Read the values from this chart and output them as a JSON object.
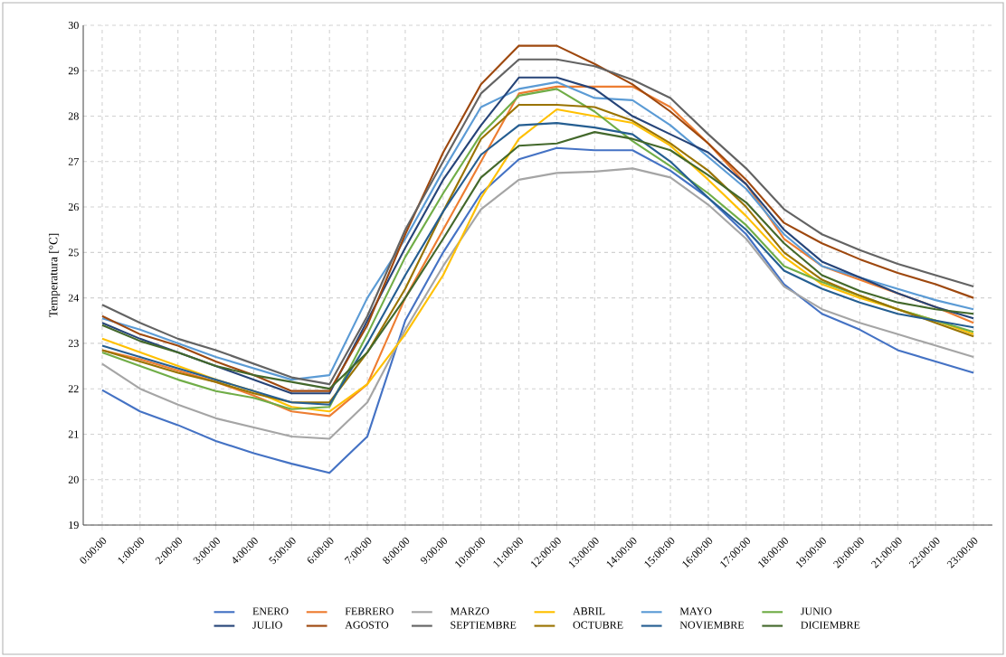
{
  "chart_data": {
    "type": "line",
    "ylabel": "Temperatura [°C]",
    "categories": [
      "0:00:00",
      "1:00:00",
      "2:00:00",
      "3:00:00",
      "4:00:00",
      "5:00:00",
      "6:00:00",
      "7:00:00",
      "8:00:00",
      "9:00:00",
      "10:00:00",
      "11:00:00",
      "12:00:00",
      "13:00:00",
      "14:00:00",
      "15:00:00",
      "16:00:00",
      "17:00:00",
      "18:00:00",
      "19:00:00",
      "20:00:00",
      "21:00:00",
      "22:00:00",
      "23:00:00"
    ],
    "ylim": [
      19,
      30
    ],
    "yticks": [
      19,
      20,
      21,
      22,
      23,
      24,
      25,
      26,
      27,
      28,
      29,
      30
    ],
    "grid": true,
    "legend": "bottom",
    "marker": "none",
    "line_style": "solid",
    "series": [
      {
        "name": "ENERO",
        "color": "#4472c4",
        "values": [
          21.97,
          21.5,
          21.2,
          20.85,
          20.58,
          20.35,
          20.15,
          20.95,
          23.5,
          25.0,
          26.3,
          27.05,
          27.3,
          27.25,
          27.25,
          26.8,
          26.2,
          25.4,
          24.3,
          23.65,
          23.3,
          22.85,
          22.6,
          22.35
        ]
      },
      {
        "name": "FEBRERO",
        "color": "#ed7d31",
        "values": [
          22.85,
          22.65,
          22.4,
          22.15,
          21.85,
          21.5,
          21.4,
          22.1,
          24.0,
          25.5,
          27.0,
          28.5,
          28.65,
          28.65,
          28.65,
          28.2,
          27.4,
          26.5,
          25.3,
          24.7,
          24.4,
          24.1,
          23.8,
          23.45
        ]
      },
      {
        "name": "MARZO",
        "color": "#a5a5a5",
        "values": [
          22.55,
          22.0,
          21.65,
          21.35,
          21.15,
          20.95,
          20.9,
          21.7,
          23.3,
          24.7,
          25.95,
          26.6,
          26.75,
          26.78,
          26.85,
          26.65,
          26.05,
          25.3,
          24.25,
          23.75,
          23.45,
          23.2,
          22.95,
          22.7
        ]
      },
      {
        "name": "ABRIL",
        "color": "#ffc000",
        "values": [
          23.1,
          22.8,
          22.5,
          22.2,
          21.95,
          21.6,
          21.5,
          22.1,
          23.2,
          24.5,
          26.2,
          27.5,
          28.15,
          28.0,
          27.85,
          27.35,
          26.6,
          25.8,
          24.9,
          24.3,
          24.0,
          23.75,
          23.5,
          23.2
        ]
      },
      {
        "name": "MAYO",
        "color": "#5b9bd5",
        "values": [
          23.55,
          23.3,
          23.0,
          22.7,
          22.45,
          22.2,
          22.3,
          24.0,
          25.3,
          26.8,
          28.2,
          28.6,
          28.75,
          28.4,
          28.35,
          27.8,
          27.1,
          26.4,
          25.4,
          24.7,
          24.45,
          24.2,
          23.95,
          23.75
        ]
      },
      {
        "name": "JUNIO",
        "color": "#70ad47",
        "values": [
          22.8,
          22.5,
          22.2,
          21.95,
          21.8,
          21.55,
          21.6,
          23.2,
          24.9,
          26.3,
          27.6,
          28.45,
          28.6,
          28.1,
          27.45,
          26.9,
          26.3,
          25.6,
          24.7,
          24.35,
          24.05,
          23.75,
          23.5,
          23.25
        ]
      },
      {
        "name": "JULIO",
        "color": "#264478",
        "values": [
          23.45,
          23.1,
          22.8,
          22.5,
          22.2,
          21.9,
          21.9,
          23.5,
          25.1,
          26.6,
          27.8,
          28.85,
          28.85,
          28.6,
          28.0,
          27.6,
          27.2,
          26.5,
          25.5,
          24.8,
          24.45,
          24.1,
          23.8,
          23.55
        ]
      },
      {
        "name": "AGOSTO",
        "color": "#9e480e",
        "values": [
          23.6,
          23.2,
          22.95,
          22.6,
          22.3,
          21.95,
          21.95,
          23.4,
          25.4,
          27.2,
          28.7,
          29.55,
          29.55,
          29.15,
          28.7,
          28.1,
          27.4,
          26.6,
          25.65,
          25.2,
          24.85,
          24.55,
          24.3,
          24.0
        ]
      },
      {
        "name": "SEPTIEMBRE",
        "color": "#636363",
        "values": [
          23.85,
          23.45,
          23.1,
          22.85,
          22.55,
          22.25,
          22.1,
          23.6,
          25.5,
          27.0,
          28.5,
          29.25,
          29.25,
          29.1,
          28.8,
          28.4,
          27.6,
          26.85,
          25.95,
          25.4,
          25.05,
          24.75,
          24.5,
          24.25
        ]
      },
      {
        "name": "OCTUBRE",
        "color": "#997300",
        "values": [
          22.85,
          22.6,
          22.35,
          22.15,
          21.9,
          21.7,
          21.7,
          22.8,
          24.2,
          25.9,
          27.5,
          28.25,
          28.25,
          28.2,
          27.9,
          27.4,
          26.8,
          26.0,
          25.0,
          24.4,
          24.05,
          23.75,
          23.45,
          23.15
        ]
      },
      {
        "name": "NOVIEMBRE",
        "color": "#255e91",
        "values": [
          22.95,
          22.7,
          22.45,
          22.2,
          21.95,
          21.7,
          21.65,
          23.0,
          24.5,
          25.9,
          27.15,
          27.8,
          27.85,
          27.75,
          27.6,
          27.0,
          26.2,
          25.5,
          24.6,
          24.2,
          23.9,
          23.65,
          23.5,
          23.35
        ]
      },
      {
        "name": "DICIEMBRE",
        "color": "#43682b",
        "values": [
          23.4,
          23.05,
          22.8,
          22.5,
          22.3,
          22.15,
          22.0,
          22.8,
          24.0,
          25.3,
          26.65,
          27.35,
          27.4,
          27.65,
          27.5,
          27.25,
          26.7,
          26.1,
          25.2,
          24.5,
          24.15,
          23.9,
          23.75,
          23.65
        ]
      }
    ]
  }
}
